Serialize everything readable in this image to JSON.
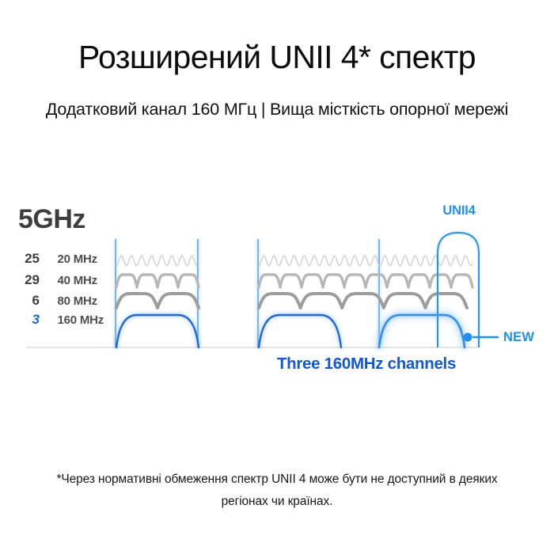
{
  "header": {
    "title": "Розширений UNII 4* спектр",
    "subtitle": "Додатковий канал 160 МГц | Вища місткість опорної мережі"
  },
  "diagram": {
    "band_label": "5GHz",
    "rows": [
      {
        "count": "25",
        "bandwidth": "20 MHz"
      },
      {
        "count": "29",
        "bandwidth": "40 MHz"
      },
      {
        "count": "6",
        "bandwidth": "80 MHz"
      },
      {
        "count": "3",
        "bandwidth": "160 MHz"
      }
    ],
    "unii4_label": "UNII4",
    "new_label": "NEW",
    "caption": "Three 160MHz channels",
    "channel_blocks_160mhz": 3
  },
  "footnote": {
    "line1": "*Через нормативні обмеження спектр UNII 4 може бути не доступний в деяких",
    "line2": "регіонах чи країнах."
  },
  "colors": {
    "accent_blue": "#2190e8",
    "caption_blue": "#1557cc",
    "channel_blue": "#2367d6",
    "new_channel_blue": "#3b8ae6",
    "text_dark": "#3e3e3e",
    "wave_20mhz": "#cccccc",
    "wave_40mhz": "#b7b7b7",
    "wave_80mhz": "#9c9c9c"
  }
}
